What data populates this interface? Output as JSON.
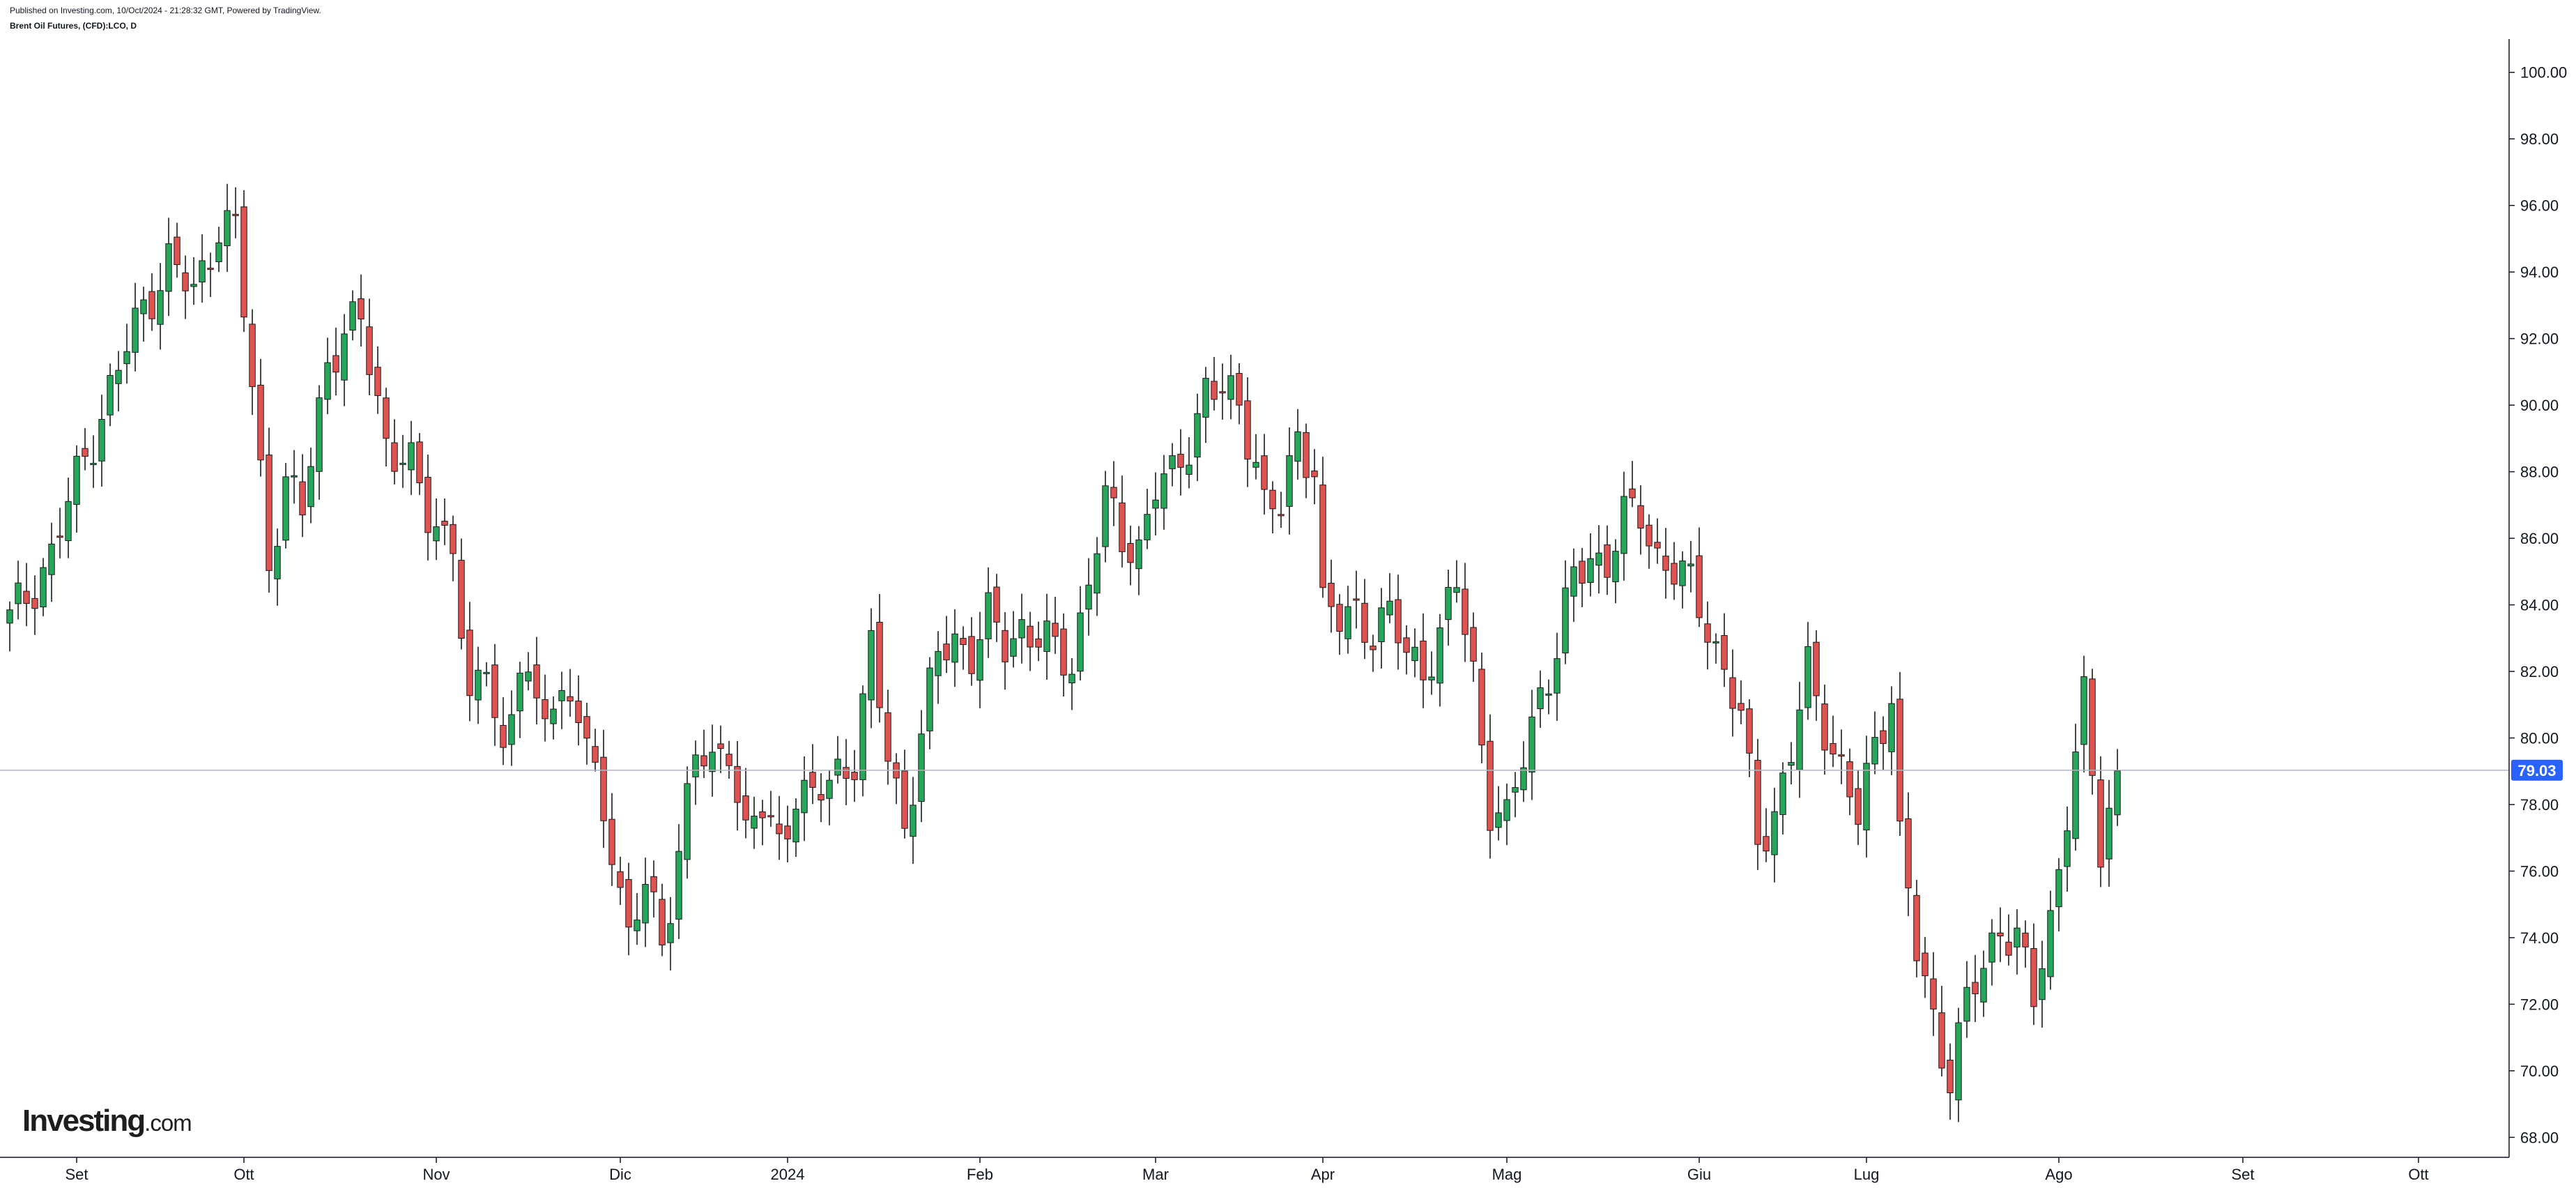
{
  "header": {
    "published": "Published on Investing.com, 10/Oct/2024 - 21:28:32 GMT, Powered by TradingView.",
    "symbol": "Brent Oil Futures, (CFD):LCO, D"
  },
  "logo": {
    "main": "Investing",
    "suffix": ".com"
  },
  "colors": {
    "up": "#26a65b",
    "down": "#e0524f",
    "wick": "#1b1b1b",
    "price_line": "#b2b5be",
    "price_badge": "#2962ff",
    "axis": "#131722"
  },
  "chart_data": {
    "type": "candlestick",
    "title": "Brent Oil Futures, (CFD):LCO, D",
    "ylim": [
      67.4,
      101.0
    ],
    "yticks": [
      "68.00",
      "70.00",
      "72.00",
      "74.00",
      "76.00",
      "78.00",
      "80.00",
      "82.00",
      "84.00",
      "86.00",
      "88.00",
      "90.00",
      "92.00",
      "94.00",
      "96.00",
      "98.00",
      "100.00"
    ],
    "x_labels": [
      {
        "label": "Set",
        "index": 8
      },
      {
        "label": "Ott",
        "index": 28
      },
      {
        "label": "Nov",
        "index": 51
      },
      {
        "label": "Dic",
        "index": 73
      },
      {
        "label": "2024",
        "index": 93
      },
      {
        "label": "Feb",
        "index": 116
      },
      {
        "label": "Mar",
        "index": 137
      },
      {
        "label": "Apr",
        "index": 157
      },
      {
        "label": "Mag",
        "index": 179
      },
      {
        "label": "Giu",
        "index": 202
      },
      {
        "label": "Lug",
        "index": 222
      },
      {
        "label": "Ago",
        "index": 245
      },
      {
        "label": "Set",
        "index": 267
      },
      {
        "label": "Ott",
        "index": 288
      }
    ],
    "last_price": "79.03",
    "grid": false,
    "anchors": [
      [
        0,
        83.5
      ],
      [
        5,
        85.5
      ],
      [
        9,
        88.5
      ],
      [
        12,
        90.4
      ],
      [
        16,
        93.0
      ],
      [
        19,
        94.3
      ],
      [
        22,
        93.3
      ],
      [
        25,
        95.5
      ],
      [
        27,
        95.2
      ],
      [
        29,
        90.5
      ],
      [
        31,
        85.5
      ],
      [
        33,
        87.5
      ],
      [
        35,
        86.8
      ],
      [
        38,
        91.5
      ],
      [
        42,
        92.5
      ],
      [
        45,
        89.0
      ],
      [
        48,
        88.0
      ],
      [
        50,
        86.7
      ],
      [
        53,
        86.0
      ],
      [
        55,
        80.5
      ],
      [
        57,
        82.5
      ],
      [
        59,
        79.5
      ],
      [
        61,
        82.3
      ],
      [
        63,
        80.5
      ],
      [
        65,
        81.5
      ],
      [
        68,
        80.8
      ],
      [
        70,
        78.5
      ],
      [
        72,
        77.0
      ],
      [
        74,
        74.0
      ],
      [
        76,
        75.5
      ],
      [
        78,
        73.8
      ],
      [
        80,
        76.8
      ],
      [
        82,
        79.5
      ],
      [
        84,
        79.0
      ],
      [
        86,
        80.0
      ],
      [
        88,
        77.0
      ],
      [
        90,
        77.8
      ],
      [
        92,
        76.8
      ],
      [
        94,
        78.5
      ],
      [
        96,
        78.0
      ],
      [
        99,
        79.0
      ],
      [
        101,
        79.5
      ],
      [
        103,
        82.5
      ],
      [
        105,
        79.5
      ],
      [
        107,
        77.5
      ],
      [
        109,
        80.0
      ],
      [
        111,
        82.5
      ],
      [
        113,
        83.0
      ],
      [
        115,
        82.6
      ],
      [
        117,
        83.5
      ],
      [
        119,
        82.8
      ],
      [
        121,
        83.4
      ],
      [
        123,
        83.0
      ],
      [
        125,
        82.5
      ],
      [
        127,
        82.3
      ],
      [
        129,
        84.8
      ],
      [
        131,
        87.0
      ],
      [
        133,
        86.0
      ],
      [
        135,
        85.8
      ],
      [
        137,
        87.5
      ],
      [
        139,
        87.7
      ],
      [
        141,
        89.0
      ],
      [
        143,
        90.5
      ],
      [
        145,
        90.3
      ],
      [
        147,
        90.0
      ],
      [
        149,
        88.5
      ],
      [
        150,
        87.0
      ],
      [
        152,
        86.8
      ],
      [
        154,
        89.0
      ],
      [
        156,
        88.3
      ],
      [
        157,
        84.0
      ],
      [
        159,
        83.4
      ],
      [
        161,
        83.8
      ],
      [
        163,
        83.3
      ],
      [
        165,
        83.6
      ],
      [
        167,
        82.5
      ],
      [
        169,
        82.2
      ],
      [
        171,
        83.0
      ],
      [
        173,
        84.6
      ],
      [
        175,
        82.0
      ],
      [
        177,
        78.0
      ],
      [
        179,
        77.3
      ],
      [
        181,
        79.5
      ],
      [
        183,
        81.5
      ],
      [
        185,
        82.5
      ],
      [
        187,
        84.8
      ],
      [
        189,
        85.5
      ],
      [
        191,
        85.3
      ],
      [
        193,
        86.5
      ],
      [
        195,
        86.8
      ],
      [
        197,
        85.5
      ],
      [
        199,
        85.0
      ],
      [
        201,
        84.5
      ],
      [
        203,
        83.5
      ],
      [
        205,
        82.0
      ],
      [
        207,
        80.5
      ],
      [
        209,
        77.0
      ],
      [
        211,
        77.8
      ],
      [
        213,
        79.5
      ],
      [
        215,
        82.0
      ],
      [
        217,
        80.5
      ],
      [
        219,
        79.0
      ],
      [
        221,
        77.5
      ],
      [
        223,
        79.8
      ],
      [
        225,
        81.5
      ],
      [
        226,
        77.0
      ],
      [
        228,
        73.5
      ],
      [
        230,
        71.5
      ],
      [
        232,
        70.0
      ],
      [
        234,
        72.0
      ],
      [
        236,
        73.0
      ],
      [
        238,
        74.5
      ],
      [
        240,
        74.0
      ],
      [
        242,
        72.0
      ],
      [
        244,
        74.5
      ],
      [
        246,
        78.0
      ],
      [
        248,
        81.0
      ],
      [
        250,
        76.5
      ],
      [
        252,
        79.0
      ]
    ]
  }
}
